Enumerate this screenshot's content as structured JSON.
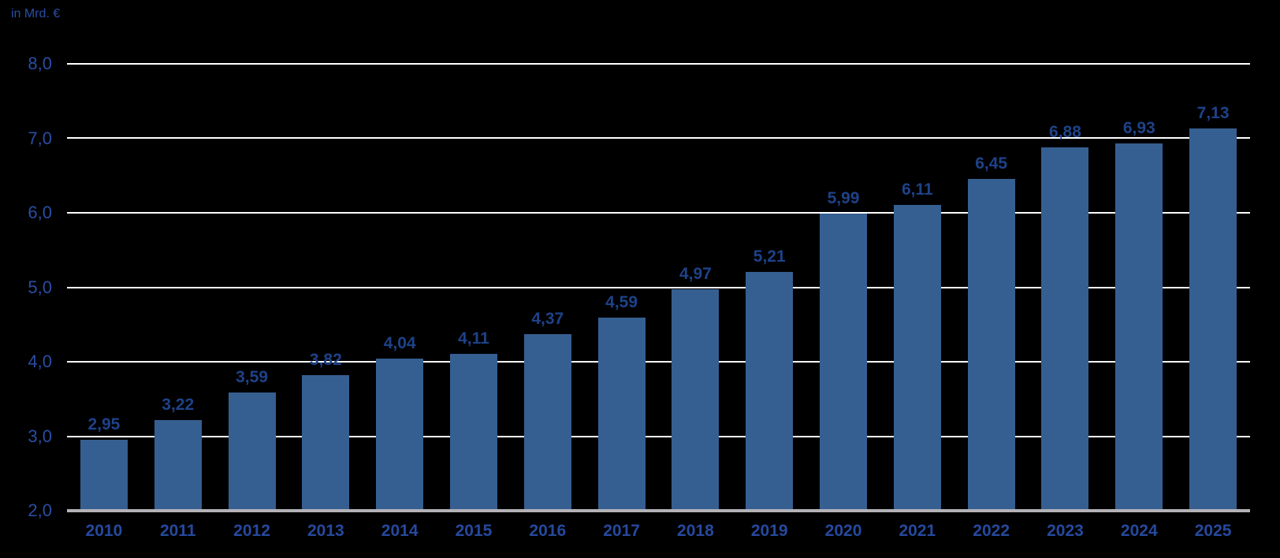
{
  "unit_label": "in Mrd. €",
  "colors": {
    "background": "#000000",
    "bar": "#365f91",
    "value_label": "#1e4289",
    "axis_text": "#2a4da3",
    "year_label": "#26499e",
    "gridline": "#ffffff",
    "baseline": "#b3b3b7"
  },
  "chart_data": {
    "type": "bar",
    "title": "",
    "ylabel": "in Mrd. €",
    "xlabel": "",
    "categories": [
      "2010",
      "2011",
      "2012",
      "2013",
      "2014",
      "2015",
      "2016",
      "2017",
      "2018",
      "2019",
      "2020",
      "2021",
      "2022",
      "2023",
      "2024",
      "2025"
    ],
    "values": [
      2.95,
      3.22,
      3.59,
      3.82,
      4.04,
      4.11,
      4.37,
      4.59,
      4.97,
      5.21,
      5.99,
      6.11,
      6.45,
      6.88,
      6.93,
      7.13
    ],
    "value_labels": [
      "2,95",
      "3,22",
      "3,59",
      "3,82",
      "4,04",
      "4,11",
      "4,37",
      "4,59",
      "4,97",
      "5,21",
      "5,99",
      "6,11",
      "6,45",
      "6,88",
      "6,93",
      "7,13"
    ],
    "ylim": [
      2.0,
      8.0
    ],
    "yticks": [
      8.0,
      7.0,
      6.0,
      5.0,
      4.0,
      3.0,
      2.0
    ],
    "ytick_labels": [
      "8,0",
      "7,0",
      "6,0",
      "5,0",
      "4,0",
      "3,0",
      "2,0"
    ],
    "decimal_separator": ",",
    "grid": true,
    "legend": false
  }
}
